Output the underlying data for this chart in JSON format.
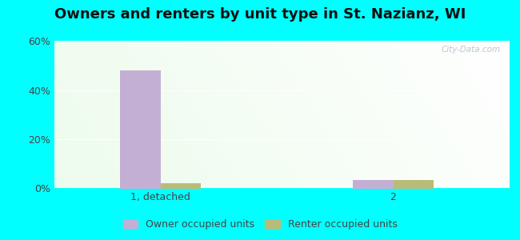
{
  "title": "Owners and renters by unit type in St. Nazianz, WI",
  "categories": [
    "1, detached",
    "2"
  ],
  "owner_values": [
    48.0,
    3.5
  ],
  "renter_values": [
    2.0,
    3.5
  ],
  "owner_color": "#c4afd4",
  "renter_color": "#b8bc78",
  "ylim": [
    0,
    60
  ],
  "yticks": [
    0,
    20,
    40,
    60
  ],
  "ytick_labels": [
    "0%",
    "20%",
    "40%",
    "60%"
  ],
  "title_fontsize": 13,
  "legend_labels": [
    "Owner occupied units",
    "Renter occupied units"
  ],
  "outer_bg": "#00FFFF",
  "watermark": "City-Data.com",
  "bar_width": 0.38,
  "group_positions": [
    1.0,
    3.2
  ],
  "xlim": [
    0.0,
    4.3
  ]
}
